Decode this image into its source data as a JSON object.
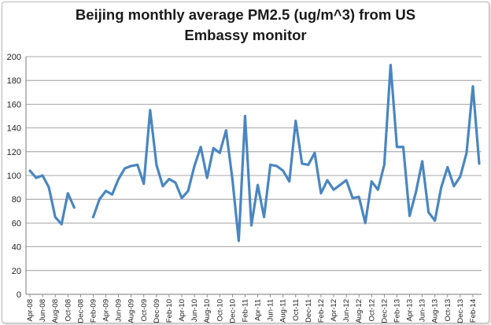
{
  "chart_data": {
    "type": "line",
    "title_line1": "Beijing monthly average PM2.5 (ug/m^3) from US",
    "title_line2": "Embassy monitor",
    "xlabel": "",
    "ylabel": "",
    "ylim": [
      0,
      200
    ],
    "y_ticks": [
      0,
      20,
      40,
      60,
      80,
      100,
      120,
      140,
      160,
      180,
      200
    ],
    "grid": "horizontal",
    "legend": "none",
    "line_color": "#4a86c0",
    "x_tick_labels": [
      "Apr-08",
      "Jun-08",
      "Aug-08",
      "Oct-08",
      "Dec-08",
      "Feb-09",
      "Apr-09",
      "Jun-09",
      "Aug-09",
      "Oct-09",
      "Dec-09",
      "Feb-10",
      "Apr-10",
      "Jun-10",
      "Aug-10",
      "Oct-10",
      "Dec-10",
      "Feb-11",
      "Apr-11",
      "Jun-11",
      "Aug-11",
      "Oct-11",
      "Dec-11",
      "Feb-12",
      "Apr-12",
      "Jun-12",
      "Aug-12",
      "Oct-12",
      "Dec-12",
      "Feb-13",
      "Apr-13",
      "Jun-13",
      "Aug-13",
      "Oct-13",
      "Dec-13",
      "Feb-14"
    ],
    "series": [
      {
        "x": [
          "Apr-08",
          "May-08",
          "Jun-08",
          "Jul-08",
          "Aug-08",
          "Sep-08",
          "Oct-08",
          "Nov-08",
          "Dec-08",
          "Jan-09",
          "Feb-09",
          "Mar-09",
          "Apr-09",
          "May-09",
          "Jun-09",
          "Jul-09",
          "Aug-09",
          "Sep-09",
          "Oct-09",
          "Nov-09",
          "Dec-09",
          "Jan-10",
          "Feb-10",
          "Mar-10",
          "Apr-10",
          "May-10",
          "Jun-10",
          "Jul-10",
          "Aug-10",
          "Sep-10",
          "Oct-10",
          "Nov-10",
          "Dec-10",
          "Jan-11",
          "Feb-11",
          "Mar-11",
          "Apr-11",
          "May-11",
          "Jun-11",
          "Jul-11",
          "Aug-11",
          "Sep-11",
          "Oct-11",
          "Nov-11",
          "Dec-11",
          "Jan-12",
          "Feb-12",
          "Mar-12",
          "Apr-12",
          "May-12",
          "Jun-12",
          "Jul-12",
          "Aug-12",
          "Sep-12",
          "Oct-12",
          "Nov-12",
          "Dec-12",
          "Jan-13",
          "Feb-13",
          "Mar-13",
          "Apr-13",
          "May-13",
          "Jun-13",
          "Jul-13",
          "Aug-13",
          "Sep-13",
          "Oct-13",
          "Nov-13",
          "Dec-13",
          "Jan-14",
          "Feb-14",
          "Mar-14"
        ],
        "values": [
          104,
          98,
          100,
          90,
          65,
          59,
          85,
          73,
          null,
          null,
          65,
          80,
          87,
          84,
          97,
          106,
          108,
          109,
          93,
          155,
          109,
          91,
          97,
          94,
          81,
          87,
          108,
          124,
          98,
          123,
          119,
          138,
          97,
          45,
          150,
          58,
          92,
          65,
          109,
          108,
          104,
          95,
          146,
          110,
          109,
          119,
          85,
          96,
          88,
          92,
          96,
          81,
          82,
          60,
          95,
          88,
          109,
          193,
          124,
          124,
          66,
          86,
          112,
          69,
          62,
          90,
          107,
          91,
          99,
          119,
          175,
          110
        ]
      }
    ]
  }
}
